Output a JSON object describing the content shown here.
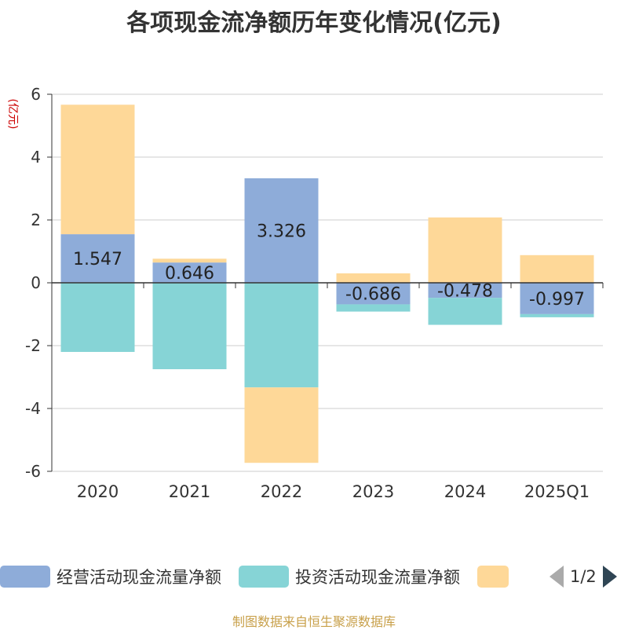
{
  "title": "各项现金流净额历年变化情况(亿元)",
  "chart_data": {
    "type": "bar",
    "stacked": true,
    "ylabel": "(亿元)",
    "ylim": [
      -6,
      6
    ],
    "yticks": [
      6,
      4,
      2,
      0,
      -2,
      -4,
      -6
    ],
    "grid": true,
    "legend_position": "bottom",
    "categories": [
      "2020",
      "2021",
      "2022",
      "2023",
      "2024",
      "2025Q1"
    ],
    "series": [
      {
        "name": "经营活动现金流量净额",
        "color": "#8eacd9",
        "values": [
          1.547,
          0.646,
          3.326,
          -0.686,
          -0.478,
          -0.997
        ],
        "labels_shown": true
      },
      {
        "name": "投资活动现金流量净额",
        "color": "#86d4d6",
        "values": [
          -2.2,
          -2.75,
          -3.33,
          -0.23,
          -0.86,
          -0.1
        ],
        "labels_shown": false
      },
      {
        "name": "",
        "color": "#fed898",
        "values": [
          4.12,
          0.12,
          -2.4,
          0.3,
          2.08,
          0.88
        ],
        "labels_shown": false
      }
    ]
  },
  "legend": {
    "items": [
      {
        "label": "经营活动现金流量净额",
        "color": "#8eacd9"
      },
      {
        "label": "投资活动现金流量净额",
        "color": "#86d4d6"
      },
      {
        "label": "",
        "color": "#fed898"
      }
    ],
    "page_text": "1/2"
  },
  "footer": "制图数据来自恒生聚源数据库"
}
